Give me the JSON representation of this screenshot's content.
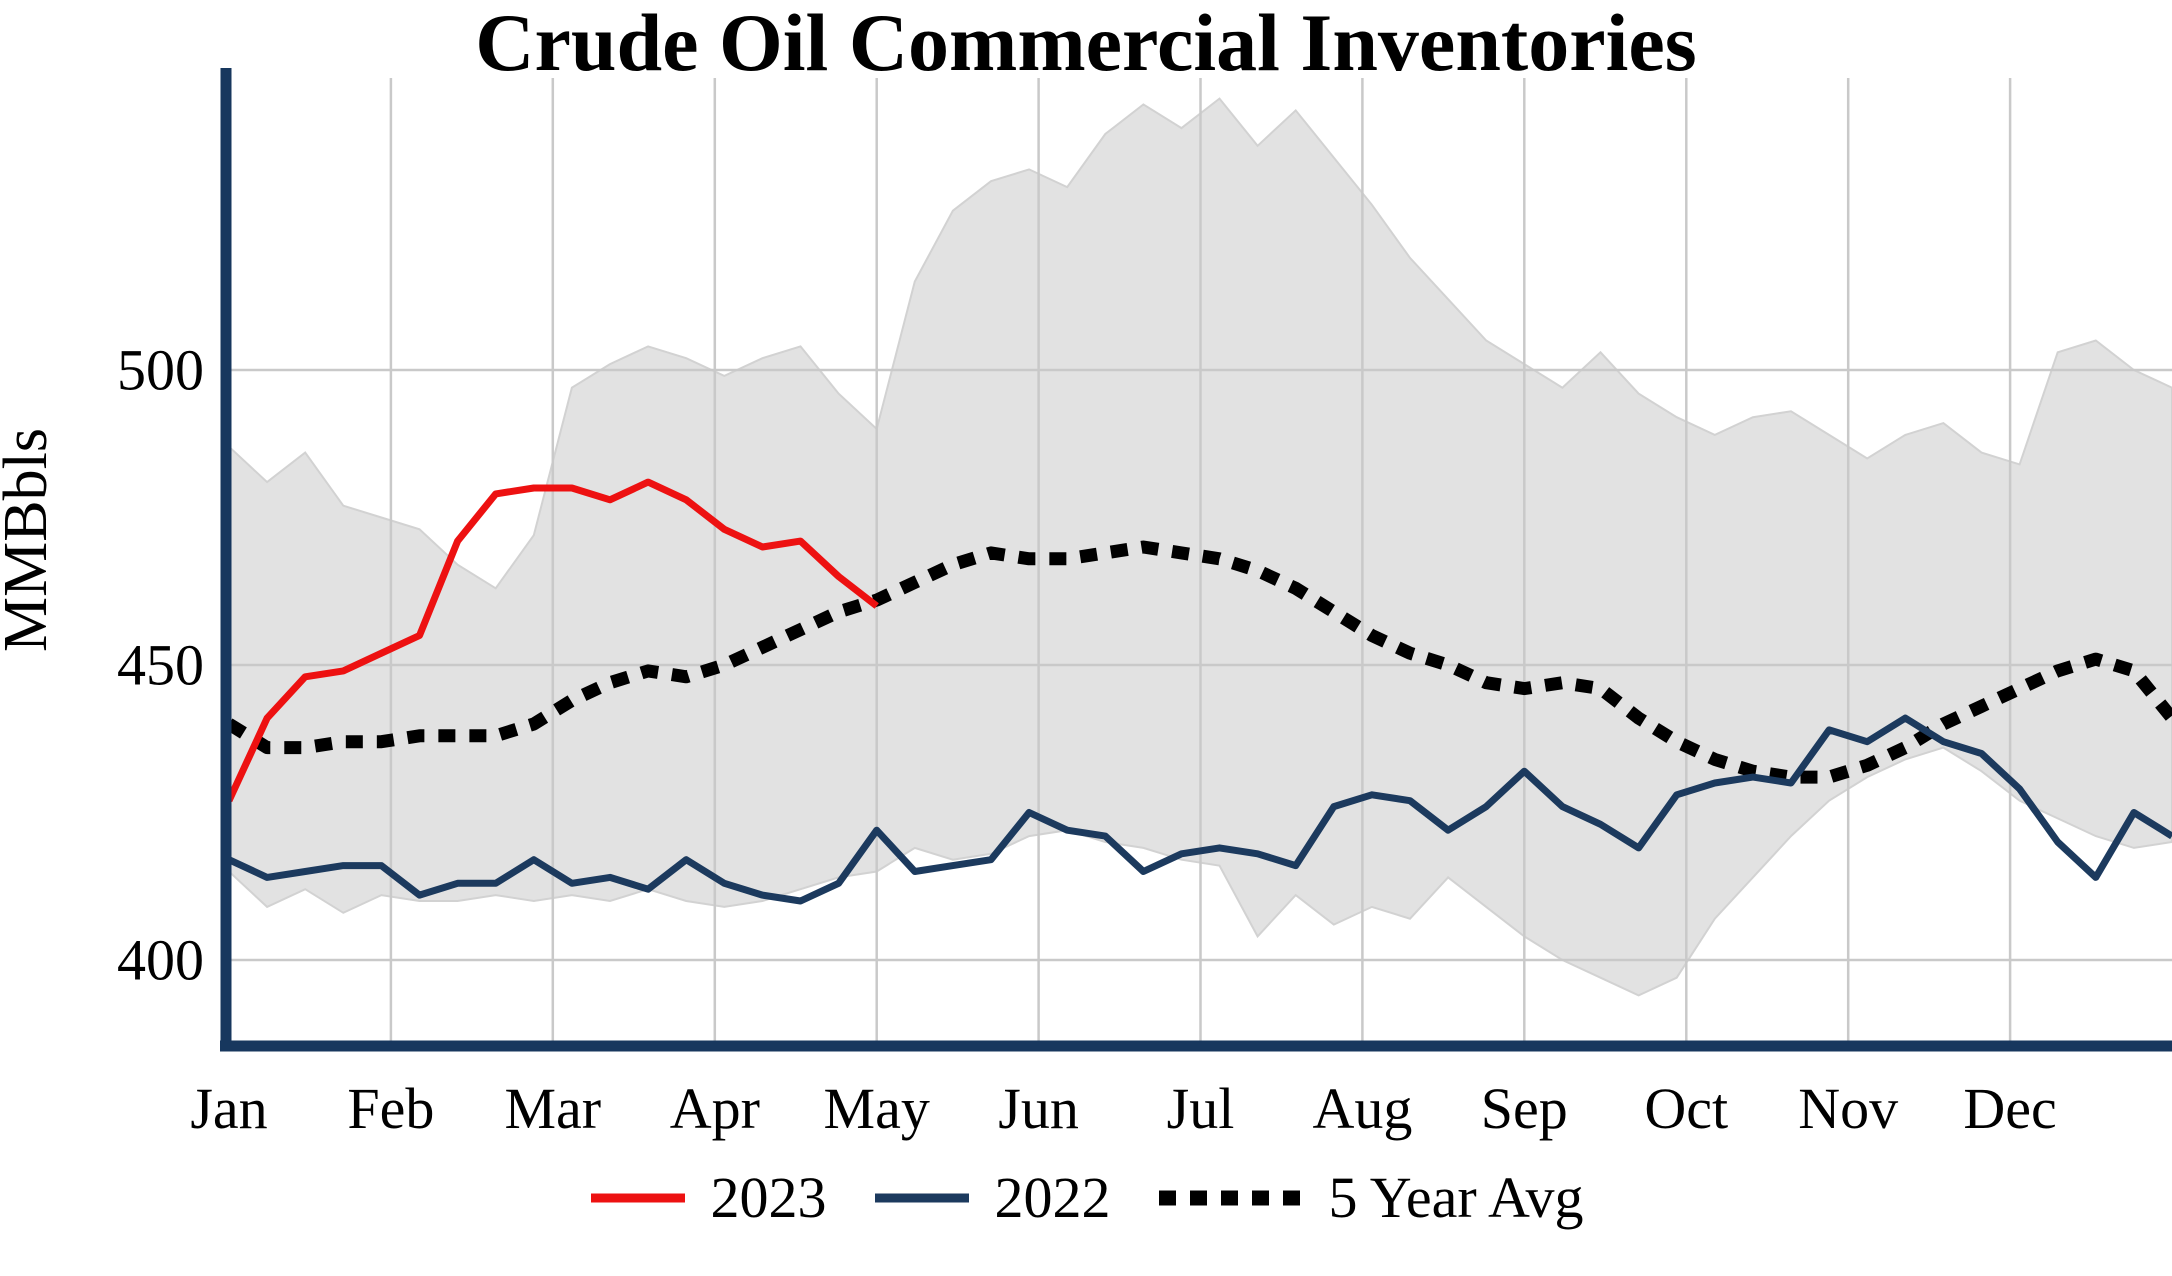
{
  "page": {
    "background": "#ffffff"
  },
  "chart_data": {
    "type": "line",
    "title": "Crude Oil Commercial Inventories",
    "ylabel": "MMBbls",
    "xlabel": "",
    "yticks": [
      400,
      450,
      500
    ],
    "ylim": [
      385,
      550
    ],
    "grid": true,
    "legend_position": "bottom",
    "months": [
      "Jan",
      "Feb",
      "Mar",
      "Apr",
      "May",
      "Jun",
      "Jul",
      "Aug",
      "Sep",
      "Oct",
      "Nov",
      "Dec"
    ],
    "weeks": 52,
    "colors": {
      "axis": "#17375e",
      "grid": "#c9c9c9",
      "text": "#000000"
    },
    "range_band": {
      "fill": "#e2e2e2",
      "edge": "#d2d2d2",
      "upper": [
        487,
        481,
        486,
        477,
        475,
        473,
        467,
        463,
        472,
        497,
        501,
        504,
        502,
        499,
        502,
        504,
        496,
        490,
        515,
        527,
        532,
        534,
        531,
        540,
        545,
        541,
        546,
        538,
        544,
        536,
        528,
        519,
        512,
        505,
        501,
        497,
        503,
        496,
        492,
        489,
        492,
        493,
        489,
        485,
        489,
        491,
        486,
        484,
        503,
        505,
        500,
        497
      ],
      "lower": [
        415,
        409,
        412,
        408,
        411,
        410,
        410,
        411,
        410,
        411,
        410,
        412,
        410,
        409,
        410,
        412,
        414,
        415,
        419,
        417,
        418,
        421,
        422,
        420,
        419,
        417,
        416,
        404,
        411,
        406,
        409,
        407,
        414,
        409,
        404,
        400,
        397,
        394,
        397,
        407,
        414,
        421,
        427,
        431,
        434,
        436,
        432,
        427,
        424,
        421,
        419,
        420
      ]
    },
    "series": [
      {
        "name": "2023",
        "color": "#ed1111",
        "width": 7,
        "dash": "",
        "values": [
          427,
          441,
          448,
          449,
          452,
          455,
          471,
          479,
          480,
          480,
          478,
          481,
          478,
          473,
          470,
          471,
          465,
          460
        ]
      },
      {
        "name": "2022",
        "color": "#1c3a5e",
        "width": 7,
        "dash": "",
        "values": [
          417,
          414,
          415,
          416,
          416,
          411,
          413,
          413,
          417,
          413,
          414,
          412,
          417,
          413,
          411,
          410,
          413,
          422,
          415,
          416,
          417,
          425,
          422,
          421,
          415,
          418,
          419,
          418,
          416,
          426,
          428,
          427,
          422,
          426,
          432,
          426,
          423,
          419,
          428,
          430,
          431,
          430,
          439,
          437,
          441,
          437,
          435,
          429,
          420,
          414,
          425,
          421
        ]
      },
      {
        "name": "5 Year Avg",
        "color": "#000000",
        "width": 13,
        "dash": "17 14",
        "values": [
          440,
          436,
          436,
          437,
          437,
          438,
          438,
          438,
          440,
          444,
          447,
          449,
          448,
          450,
          453,
          456,
          459,
          461,
          464,
          467,
          469,
          468,
          468,
          469,
          470,
          469,
          468,
          466,
          463,
          459,
          455,
          452,
          450,
          447,
          446,
          447,
          446,
          441,
          437,
          434,
          432,
          431,
          431,
          433,
          436,
          440,
          443,
          446,
          449,
          451,
          449,
          441
        ]
      }
    ]
  }
}
